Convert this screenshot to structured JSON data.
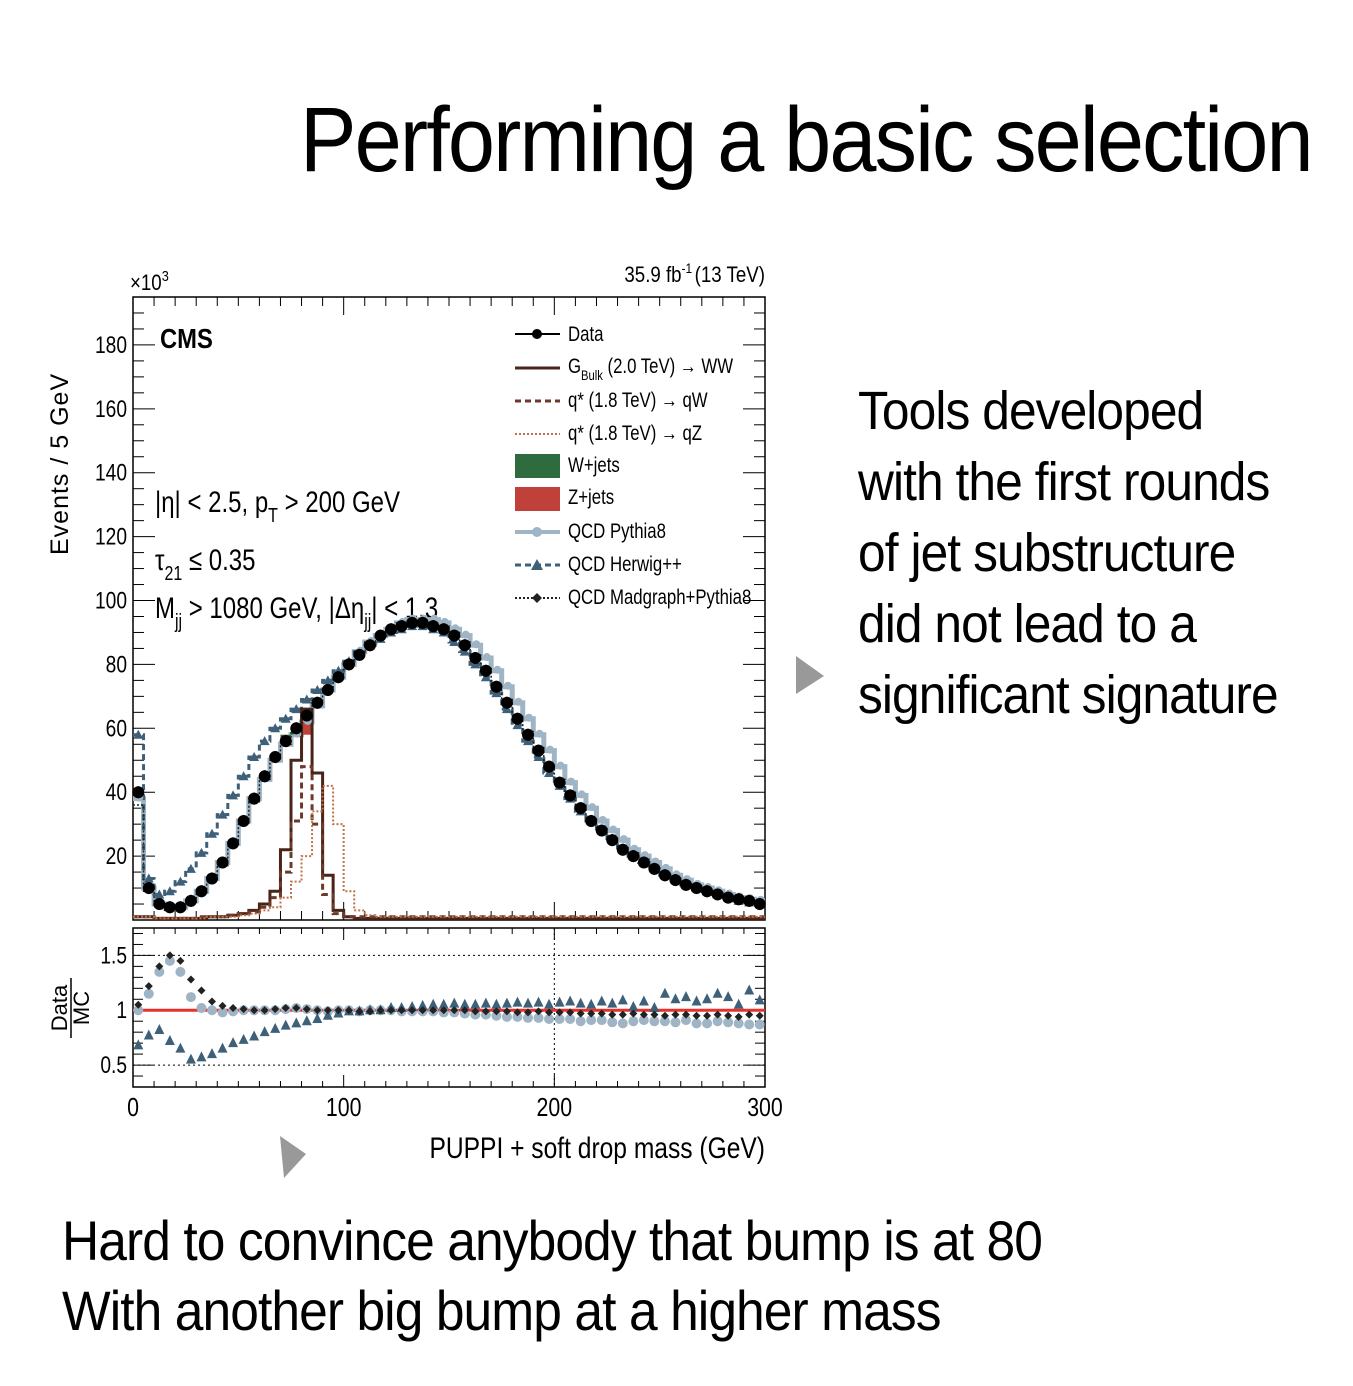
{
  "slide": {
    "title": "Performing a basic selection",
    "side_text": [
      "Tools developed",
      "with the first rounds",
      "of jet substructure",
      "did not lead to a",
      "significant signature"
    ],
    "bottom_text": [
      "Hard to convince anybody that bump is at 80",
      "With another big bump at a higher mass"
    ],
    "arrow_color": "#999999"
  },
  "chart_data": {
    "type": "line",
    "experiment": "CMS",
    "luminosity_label": "35.9 fb",
    "luminosity_sup": "-1",
    "energy_label": "(13 TeV)",
    "ylabel": "Events / 5 GeV",
    "y_multiplier": "×10",
    "y_multiplier_sup": "3",
    "xlabel": "PUPPI + soft drop mass (GeV)",
    "xlim": [
      0,
      300
    ],
    "ylim": [
      0,
      195
    ],
    "x_ticks": [
      "0",
      "100",
      "200",
      "300"
    ],
    "y_ticks": [
      "20",
      "40",
      "60",
      "80",
      "100",
      "120",
      "140",
      "160",
      "180"
    ],
    "ratio_ylabel_num": "Data",
    "ratio_ylabel_den": "MC",
    "ratio_ylim": [
      0.3,
      1.75
    ],
    "ratio_ticks": [
      "0.5",
      "1",
      "1.5"
    ],
    "cuts": {
      "line1": "|η| < 2.5, p",
      "line1_sub": "T",
      "line1_end": " > 200 GeV",
      "line2": "τ",
      "line2_sub": "21",
      "line2_end": " ≤ 0.35",
      "line3": "M",
      "line3_sub": "jj",
      "line3_end": " > 1080 GeV, |Δη",
      "line3_sub2": "jj",
      "line3_end2": "| < 1.3"
    },
    "legend": {
      "data": "Data",
      "gbulk_pre": "G",
      "gbulk_sub": "Bulk",
      "gbulk_post": " (2.0 TeV) → WW",
      "qstar_qw": "q* (1.8 TeV) → qW",
      "qstar_qz": "q* (1.8 TeV) → qZ",
      "wjets": "W+jets",
      "zjets": "Z+jets",
      "qcd_pythia": "QCD Pythia8",
      "qcd_herwig": "QCD Herwig++",
      "qcd_madgraph": "QCD Madgraph+Pythia8"
    },
    "colors": {
      "data": "#000000",
      "gbulk": "#4a2418",
      "qstar_qw": "#6b3a2a",
      "qstar_qz": "#c0714a",
      "wjets": "#2e6b3e",
      "zjets": "#c0403a",
      "qcd_pythia": "#9fb4c4",
      "qcd_herwig": "#3f6079",
      "qcd_madgraph": "#222222",
      "ratio_line": "#e8302a"
    },
    "x": [
      2.5,
      7.5,
      12.5,
      17.5,
      22.5,
      27.5,
      32.5,
      37.5,
      42.5,
      47.5,
      52.5,
      57.5,
      62.5,
      67.5,
      72.5,
      77.5,
      82.5,
      87.5,
      92.5,
      97.5,
      102.5,
      107.5,
      112.5,
      117.5,
      122.5,
      127.5,
      132.5,
      137.5,
      142.5,
      147.5,
      152.5,
      157.5,
      162.5,
      167.5,
      172.5,
      177.5,
      182.5,
      187.5,
      192.5,
      197.5,
      202.5,
      207.5,
      212.5,
      217.5,
      222.5,
      227.5,
      232.5,
      237.5,
      242.5,
      247.5,
      252.5,
      257.5,
      262.5,
      267.5,
      272.5,
      277.5,
      282.5,
      287.5,
      292.5,
      297.5
    ],
    "series": [
      {
        "name": "Data",
        "values": [
          40,
          10,
          5,
          4,
          4,
          6,
          9,
          13,
          18,
          24,
          31,
          38,
          45,
          51,
          56,
          60,
          64,
          68,
          72,
          76,
          80,
          83,
          86,
          89,
          91,
          92,
          93,
          93,
          92,
          91,
          89,
          86,
          82,
          78,
          73,
          68,
          63,
          58,
          53,
          48,
          43,
          39,
          35,
          31,
          28,
          25,
          22,
          20,
          18,
          16,
          14,
          12.5,
          11,
          10,
          9,
          8,
          7,
          6.5,
          6,
          5
        ]
      },
      {
        "name": "G_Bulk (2.0 TeV) → WW",
        "values": [
          1,
          1,
          0.5,
          0.5,
          0.5,
          0.5,
          0.5,
          1,
          1,
          1.5,
          2,
          3,
          5,
          9,
          22,
          50,
          66,
          46,
          14,
          3,
          1,
          0.5,
          0.5,
          0.5,
          0.5,
          0.5,
          0.5,
          0.5,
          0.5,
          0.5,
          0.5,
          0.5,
          0.5,
          0.5,
          0.5,
          0.5,
          0.5,
          0.5,
          0.5,
          0.5,
          0.5,
          0.5,
          0.5,
          0.5,
          0.5,
          0.5,
          0.5,
          0.5,
          0.5,
          0.5,
          0.5,
          0.5,
          0.5,
          0.5,
          0.5,
          0.5,
          0.5,
          0.5,
          0.5,
          0.5
        ]
      },
      {
        "name": "q* (1.8 TeV) → qW",
        "values": [
          1,
          1,
          0.5,
          0.5,
          0.5,
          0.5,
          1,
          1,
          1,
          1.5,
          2,
          2.5,
          4,
          7,
          15,
          31,
          48,
          30,
          8,
          2,
          1,
          1,
          1,
          1,
          1,
          1,
          1,
          1,
          1,
          1,
          1,
          1,
          1,
          1,
          1,
          1,
          1,
          1,
          1,
          1,
          1,
          1,
          1,
          1,
          1,
          1,
          1,
          1,
          1,
          1,
          1,
          1,
          1,
          1,
          1,
          1,
          1,
          1,
          1,
          1
        ]
      },
      {
        "name": "q* (1.8 TeV) → qZ",
        "values": [
          1,
          1,
          0.5,
          0.5,
          0.5,
          0.5,
          0.5,
          1,
          1,
          1,
          1.5,
          2,
          3,
          4,
          7,
          12,
          20,
          34,
          42,
          30,
          9,
          3,
          1.5,
          1,
          1,
          1,
          1,
          1,
          1,
          1,
          1,
          1,
          1,
          1,
          1,
          1,
          1,
          1,
          1,
          1,
          1,
          1,
          1,
          1,
          1,
          1,
          1,
          1,
          1,
          1,
          1,
          1,
          1,
          1,
          1,
          1,
          1,
          1,
          1,
          1
        ]
      },
      {
        "name": "QCD Pythia8",
        "values": [
          38,
          10,
          5,
          4,
          4,
          6,
          9,
          13,
          18,
          24,
          31,
          38,
          44,
          50,
          55,
          58,
          62,
          67,
          72,
          76,
          80,
          84,
          87,
          89,
          91,
          93,
          94,
          94,
          94,
          93,
          91,
          89,
          86,
          82,
          78,
          73,
          68,
          63,
          58,
          53,
          48,
          43,
          39,
          35,
          31,
          28,
          25,
          22,
          20,
          18,
          16,
          14,
          12.5,
          11,
          10,
          9,
          8,
          7,
          6.5,
          6
        ]
      },
      {
        "name": "QCD Herwig++",
        "values": [
          58,
          13,
          8,
          9,
          12,
          16,
          21,
          27,
          33,
          39,
          45,
          51,
          56,
          60,
          63,
          66,
          69,
          72,
          75,
          78,
          81,
          84,
          86,
          88,
          90,
          91,
          92,
          92,
          91,
          90,
          87,
          84,
          80,
          76,
          71,
          66,
          61,
          56,
          51,
          46,
          42,
          38,
          34,
          31,
          28,
          25,
          22,
          20,
          18,
          16,
          14,
          12.5,
          11,
          10,
          9,
          8,
          7,
          6,
          5.5,
          5
        ]
      },
      {
        "name": "QCD Madgraph+Pythia8",
        "values": [
          36,
          9,
          4,
          3,
          3,
          5,
          8,
          12,
          17,
          23,
          30,
          37,
          44,
          50,
          55,
          59,
          63,
          68,
          72,
          76,
          80,
          84,
          87,
          89,
          91,
          93,
          93,
          93,
          93,
          92,
          90,
          87,
          83,
          79,
          74,
          69,
          64,
          59,
          54,
          49,
          44,
          40,
          36,
          32,
          29,
          26,
          23,
          21,
          19,
          17,
          15,
          13,
          11.5,
          10.5,
          9.5,
          8.5,
          7.5,
          7,
          6.5,
          6
        ]
      }
    ],
    "ratio_series": [
      {
        "name": "QCD Pythia8",
        "values": [
          1.0,
          1.15,
          1.35,
          1.45,
          1.35,
          1.12,
          1.02,
          1.0,
          0.98,
          0.99,
          1.0,
          1.0,
          1.0,
          1.0,
          1.01,
          1.02,
          1.01,
          1.0,
          0.99,
          1.0,
          1.0,
          0.99,
          1.0,
          1.0,
          1.0,
          0.99,
          0.99,
          0.99,
          0.99,
          0.98,
          0.98,
          0.97,
          0.96,
          0.96,
          0.95,
          0.94,
          0.94,
          0.93,
          0.93,
          0.92,
          0.92,
          0.92,
          0.9,
          0.91,
          0.91,
          0.89,
          0.88,
          0.9,
          0.91,
          0.9,
          0.9,
          0.89,
          0.91,
          0.88,
          0.88,
          0.9,
          0.89,
          0.88,
          0.87,
          0.87
        ]
      },
      {
        "name": "QCD Herwig++",
        "values": [
          0.68,
          0.77,
          0.82,
          0.72,
          0.65,
          0.55,
          0.57,
          0.6,
          0.65,
          0.7,
          0.73,
          0.76,
          0.8,
          0.83,
          0.86,
          0.88,
          0.9,
          0.92,
          0.95,
          0.97,
          0.99,
          0.99,
          1.0,
          1.0,
          1.02,
          1.02,
          1.03,
          1.04,
          1.05,
          1.05,
          1.06,
          1.05,
          1.05,
          1.06,
          1.05,
          1.06,
          1.07,
          1.06,
          1.07,
          1.05,
          1.07,
          1.08,
          1.06,
          1.05,
          1.08,
          1.06,
          1.09,
          1.03,
          1.08,
          1.02,
          1.15,
          1.1,
          1.12,
          1.08,
          1.1,
          1.15,
          1.12,
          1.05,
          1.18,
          1.09
        ]
      },
      {
        "name": "QCD Madgraph+Pythia8",
        "values": [
          1.05,
          1.22,
          1.4,
          1.5,
          1.45,
          1.28,
          1.18,
          1.08,
          1.04,
          1.02,
          1.01,
          1.0,
          1.0,
          1.01,
          1.02,
          1.02,
          1.01,
          1.0,
          1.0,
          1.0,
          1.0,
          0.99,
          0.99,
          1.0,
          1.0,
          1.0,
          1.0,
          1.0,
          1.0,
          1.0,
          1.0,
          1.0,
          0.99,
          0.99,
          0.99,
          0.99,
          0.98,
          0.98,
          0.99,
          0.98,
          0.98,
          0.98,
          0.97,
          0.97,
          0.97,
          0.96,
          0.96,
          0.97,
          0.96,
          0.96,
          0.95,
          0.96,
          0.96,
          0.95,
          0.95,
          0.96,
          0.95,
          0.94,
          0.96,
          0.95
        ]
      }
    ],
    "grid": false,
    "legend_position": "top-right"
  }
}
